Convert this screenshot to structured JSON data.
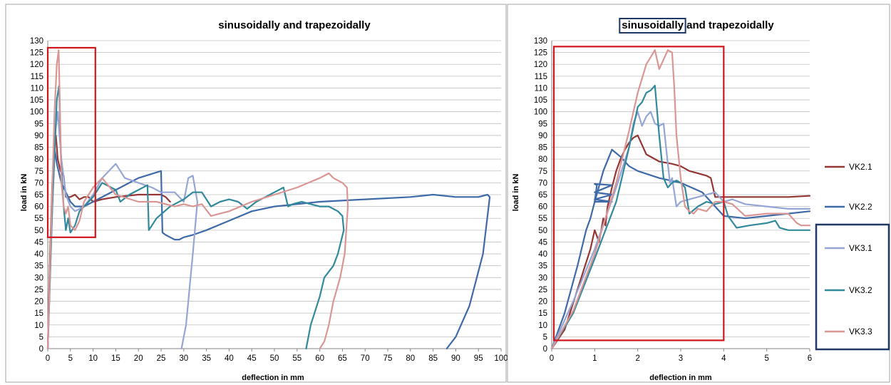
{
  "colors": {
    "VK2.1": "#943634",
    "VK2.2": "#3e6aa8",
    "VK3.1": "#95a6d4",
    "VK3.2": "#31899c",
    "VK3.3": "#d99694",
    "highlight_red": "#d0161b",
    "highlight_blue": "#1f3864",
    "grid": "#bfbfbf"
  },
  "chart_data": [
    {
      "type": "line",
      "title": "sinusoidally and trapezoidally",
      "xlabel": "deflection in mm",
      "ylabel": "load in kN",
      "xlim": [
        0,
        100
      ],
      "ylim": [
        0,
        130
      ],
      "xticks": [
        "0",
        "5",
        "10",
        "15",
        "20",
        "25",
        "30",
        "35",
        "40",
        "45",
        "50",
        "55",
        "60",
        "65",
        "70",
        "75",
        "80",
        "85",
        "90",
        "95",
        "100"
      ],
      "yticks": [
        "0",
        "5",
        "10",
        "15",
        "20",
        "25",
        "30",
        "35",
        "40",
        "45",
        "50",
        "55",
        "60",
        "65",
        "70",
        "75",
        "80",
        "85",
        "90",
        "95",
        "100",
        "105",
        "110",
        "115",
        "120",
        "125",
        "130"
      ],
      "grid": "horizontal",
      "annotations": [
        {
          "type": "red-box",
          "x": [
            0,
            10.5
          ],
          "y": [
            47,
            127
          ]
        }
      ],
      "series": [
        {
          "name": "VK2.1",
          "x": [
            0,
            0.5,
            1,
            1.5,
            1.8,
            2.2,
            2.8,
            3.5,
            4,
            5,
            6,
            7,
            8,
            9,
            10,
            12,
            15,
            20,
            25,
            26,
            27
          ],
          "y": [
            0,
            40,
            70,
            88,
            90,
            80,
            75,
            73,
            64,
            64,
            65,
            63,
            64,
            64,
            62,
            63,
            64,
            65,
            65,
            64,
            62
          ]
        },
        {
          "name": "VK2.2",
          "x": [
            0,
            0.8,
            1.4,
            2,
            3,
            4,
            5,
            6,
            8,
            10,
            15,
            20,
            25,
            25.3,
            26,
            27,
            28,
            29,
            30,
            32,
            35,
            40,
            45,
            50,
            55,
            60,
            70,
            80,
            85,
            90,
            95,
            97,
            97.5,
            96,
            93,
            90,
            88
          ],
          "y": [
            0,
            55,
            86,
            78,
            70,
            66,
            62,
            60,
            60,
            62,
            67,
            72,
            75,
            49,
            48,
            47,
            46,
            46,
            47,
            48,
            50,
            54,
            58,
            60,
            61,
            62,
            63,
            64,
            65,
            64,
            64,
            65,
            64,
            40,
            18,
            5,
            0
          ]
        },
        {
          "name": "VK3.1",
          "x": [
            0,
            1,
            1.7,
            2.2,
            3,
            4,
            5,
            6,
            8,
            10,
            12,
            14,
            15,
            17,
            20,
            23,
            25,
            28,
            30,
            31,
            32,
            33,
            32,
            31.5,
            31,
            30.5,
            30,
            29.5
          ],
          "y": [
            0,
            60,
            92,
            100,
            80,
            65,
            60,
            58,
            60,
            65,
            72,
            76,
            78,
            72,
            70,
            68,
            66,
            66,
            62,
            72,
            73,
            62,
            40,
            30,
            20,
            10,
            5,
            0
          ]
        },
        {
          "name": "VK3.2",
          "x": [
            0,
            1,
            2,
            2.5,
            3,
            3.5,
            4,
            4.5,
            5,
            6,
            7,
            8,
            10,
            12,
            14,
            15,
            16,
            18,
            20,
            22,
            22.3,
            24,
            27,
            30,
            32,
            34,
            36,
            38,
            40,
            42,
            44,
            46,
            48,
            50,
            52,
            53,
            54,
            56,
            58,
            60,
            62,
            64,
            65,
            65.3,
            64,
            63,
            61,
            60,
            58,
            57
          ],
          "y": [
            0,
            60,
            105,
            111,
            75,
            60,
            50,
            55,
            49,
            52,
            58,
            60,
            64,
            70,
            68,
            67,
            62,
            65,
            67,
            69,
            50,
            55,
            60,
            63,
            66,
            66,
            60,
            62,
            63,
            62,
            59,
            62,
            64,
            66,
            68,
            60,
            61,
            62,
            61,
            60,
            60,
            58,
            56,
            50,
            40,
            35,
            30,
            22,
            10,
            0
          ]
        },
        {
          "name": "VK3.3",
          "x": [
            0,
            0.8,
            1.5,
            2,
            2.4,
            2.7,
            3,
            3.5,
            4,
            4.5,
            5,
            6,
            7,
            8,
            10,
            12,
            15,
            20,
            22,
            24,
            26,
            28,
            30,
            32,
            34,
            36,
            38,
            40,
            45,
            50,
            55,
            60,
            61,
            62,
            63,
            64,
            65,
            66,
            66.2,
            65.5,
            64.5,
            63,
            62,
            61,
            60
          ],
          "y": [
            0,
            55,
            100,
            120,
            126,
            100,
            70,
            60,
            57,
            60,
            52,
            50,
            54,
            62,
            68,
            72,
            65,
            62,
            62,
            62,
            61,
            60,
            61,
            60,
            61,
            56,
            57,
            58,
            62,
            65,
            68,
            72,
            73,
            74,
            72,
            71,
            70,
            68,
            60,
            40,
            30,
            20,
            10,
            3,
            0
          ]
        }
      ]
    },
    {
      "type": "line",
      "title": "sinusoidally and trapezoidally",
      "xlabel": "deflection in mm",
      "ylabel": "load in kN",
      "xlim": [
        0,
        6
      ],
      "ylim": [
        0,
        130
      ],
      "xticks": [
        "0",
        "1",
        "2",
        "3",
        "4",
        "5",
        "6"
      ],
      "yticks": [
        "0",
        "5",
        "10",
        "15",
        "20",
        "25",
        "30",
        "35",
        "40",
        "45",
        "50",
        "55",
        "60",
        "65",
        "70",
        "75",
        "80",
        "85",
        "90",
        "95",
        "100",
        "105",
        "110",
        "115",
        "120",
        "125",
        "130"
      ],
      "grid": "horizontal",
      "legend": {
        "position": "right",
        "entries": [
          "VK2.1",
          "VK2.2",
          "VK3.1",
          "VK3.2",
          "VK3.3"
        ]
      },
      "annotations": [
        {
          "type": "red-box",
          "x": [
            0.05,
            4.0
          ],
          "y": [
            3.5,
            127.5
          ]
        },
        {
          "type": "blue-box",
          "target": "title-word",
          "text": "sinusoidally"
        },
        {
          "type": "blue-box",
          "target": "legend",
          "entries": [
            "VK3.1",
            "VK3.2",
            "VK3.3"
          ]
        }
      ],
      "series": [
        {
          "name": "VK2.1",
          "x": [
            0,
            0.3,
            0.6,
            0.9,
            1.0,
            1.1,
            1.2,
            1.25,
            1.3,
            1.4,
            1.5,
            1.6,
            1.7,
            1.8,
            1.9,
            2.0,
            2.2,
            2.5,
            2.8,
            3.0,
            3.2,
            3.4,
            3.6,
            3.7,
            3.75,
            3.8,
            4.0,
            4.5,
            5.0,
            5.5,
            6.0
          ],
          "y": [
            0,
            8,
            25,
            42,
            50,
            45,
            55,
            52,
            60,
            68,
            75,
            80,
            84,
            87,
            89,
            90,
            82,
            79,
            78,
            77,
            75,
            74,
            73,
            72,
            68,
            64,
            64,
            64,
            64,
            64,
            64.5
          ]
        },
        {
          "name": "VK2.2",
          "x": [
            0,
            0.3,
            0.6,
            0.8,
            0.9,
            1.0,
            1.05,
            1.0,
            1.4,
            1.0,
            1.4,
            1.0,
            1.4,
            1.0,
            1.2,
            1.4,
            1.6,
            1.8,
            2.0,
            2.5,
            3.0,
            3.5,
            4.0,
            4.5,
            5.0,
            5.5,
            6.0
          ],
          "y": [
            0,
            15,
            35,
            50,
            55,
            62,
            69,
            69.5,
            69,
            66,
            65,
            63,
            62,
            62,
            75,
            84,
            81,
            77,
            75,
            72,
            70,
            66,
            56,
            55,
            56,
            57,
            58
          ]
        },
        {
          "name": "VK3.1",
          "x": [
            0,
            0.5,
            1,
            1.5,
            1.8,
            1.9,
            2.0,
            2.1,
            2.2,
            2.3,
            2.4,
            2.5,
            2.6,
            2.7,
            2.75,
            2.8,
            2.9,
            3.0,
            3.2,
            3.4,
            3.6,
            3.8,
            4.0,
            4.2,
            4.5,
            5,
            5.5,
            6
          ],
          "y": [
            0,
            20,
            42,
            68,
            85,
            95,
            100,
            94,
            98,
            100,
            95,
            94,
            95,
            78,
            70,
            72,
            60,
            62,
            63,
            64,
            65,
            66,
            62,
            63,
            61,
            60,
            59,
            59
          ]
        },
        {
          "name": "VK3.2",
          "x": [
            0,
            0.5,
            1,
            1.5,
            1.8,
            2.0,
            2.1,
            2.2,
            2.3,
            2.4,
            2.5,
            2.6,
            2.7,
            2.8,
            2.9,
            3.0,
            3.1,
            3.2,
            3.4,
            3.6,
            3.8,
            4.0,
            4.1,
            4.3,
            4.6,
            5.0,
            5.2,
            5.3,
            5.5,
            5.7,
            6.0
          ],
          "y": [
            0,
            15,
            38,
            62,
            85,
            102,
            104,
            108,
            109,
            111,
            90,
            72,
            68,
            70,
            71,
            70,
            68,
            57,
            60,
            62,
            61,
            62,
            56,
            51,
            52,
            53,
            54,
            51,
            50,
            50,
            50
          ]
        },
        {
          "name": "VK3.3",
          "x": [
            0,
            0.5,
            1,
            1.5,
            1.8,
            2.0,
            2.2,
            2.4,
            2.5,
            2.6,
            2.7,
            2.8,
            2.85,
            2.9,
            3.0,
            3.1,
            3.2,
            3.3,
            3.4,
            3.6,
            3.8,
            4.0,
            4.2,
            4.5,
            5.0,
            5.5,
            5.7,
            5.8,
            6.0
          ],
          "y": [
            0,
            16,
            40,
            70,
            92,
            108,
            120,
            126,
            118,
            122,
            126,
            125,
            110,
            90,
            72,
            60,
            58,
            57,
            59,
            58,
            62,
            62,
            61,
            56,
            57,
            57,
            53,
            52,
            52
          ]
        }
      ]
    }
  ]
}
